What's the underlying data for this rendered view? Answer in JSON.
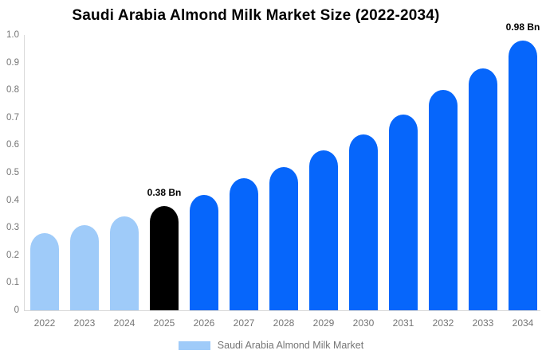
{
  "chart_data": {
    "type": "bar",
    "title": "Saudi Arabia Almond Milk Market Size (2022-2034)",
    "xlabel": "",
    "ylabel": "",
    "unit": "Bn",
    "categories": [
      "2022",
      "2023",
      "2024",
      "2025",
      "2026",
      "2027",
      "2028",
      "2029",
      "2030",
      "2031",
      "2032",
      "2033",
      "2034"
    ],
    "values": [
      0.28,
      0.31,
      0.34,
      0.38,
      0.42,
      0.48,
      0.52,
      0.58,
      0.64,
      0.71,
      0.8,
      0.88,
      0.98
    ],
    "bar_colors": [
      "#9FCBF9",
      "#9FCBF9",
      "#9FCBF9",
      "#000000",
      "#0666FB",
      "#0666FB",
      "#0666FB",
      "#0666FB",
      "#0666FB",
      "#0666FB",
      "#0666FB",
      "#0666FB",
      "#0666FB"
    ],
    "data_labels": [
      {
        "index": 3,
        "text": "0.38 Bn"
      },
      {
        "index": 12,
        "text": "0.98 Bn"
      }
    ],
    "ylim": [
      0,
      1.0
    ],
    "yticks": [
      "0",
      "0.1",
      "0.2",
      "0.3",
      "0.4",
      "0.5",
      "0.6",
      "0.7",
      "0.8",
      "0.9",
      "1.0"
    ],
    "grid": false,
    "legend_position": "bottom"
  },
  "legend": {
    "label": "Saudi Arabia Almond Milk Market",
    "swatch_color": "#9FCBF9"
  },
  "colors": {
    "axis_line": "#D9D9D9",
    "tick_text": "#757575",
    "title_text": "#000000",
    "annotation_text": "#000000",
    "historical_blue": "#9FCBF9",
    "base_year_black": "#000000",
    "forecast_blue": "#0666FB",
    "background": "#FFFFFF"
  }
}
